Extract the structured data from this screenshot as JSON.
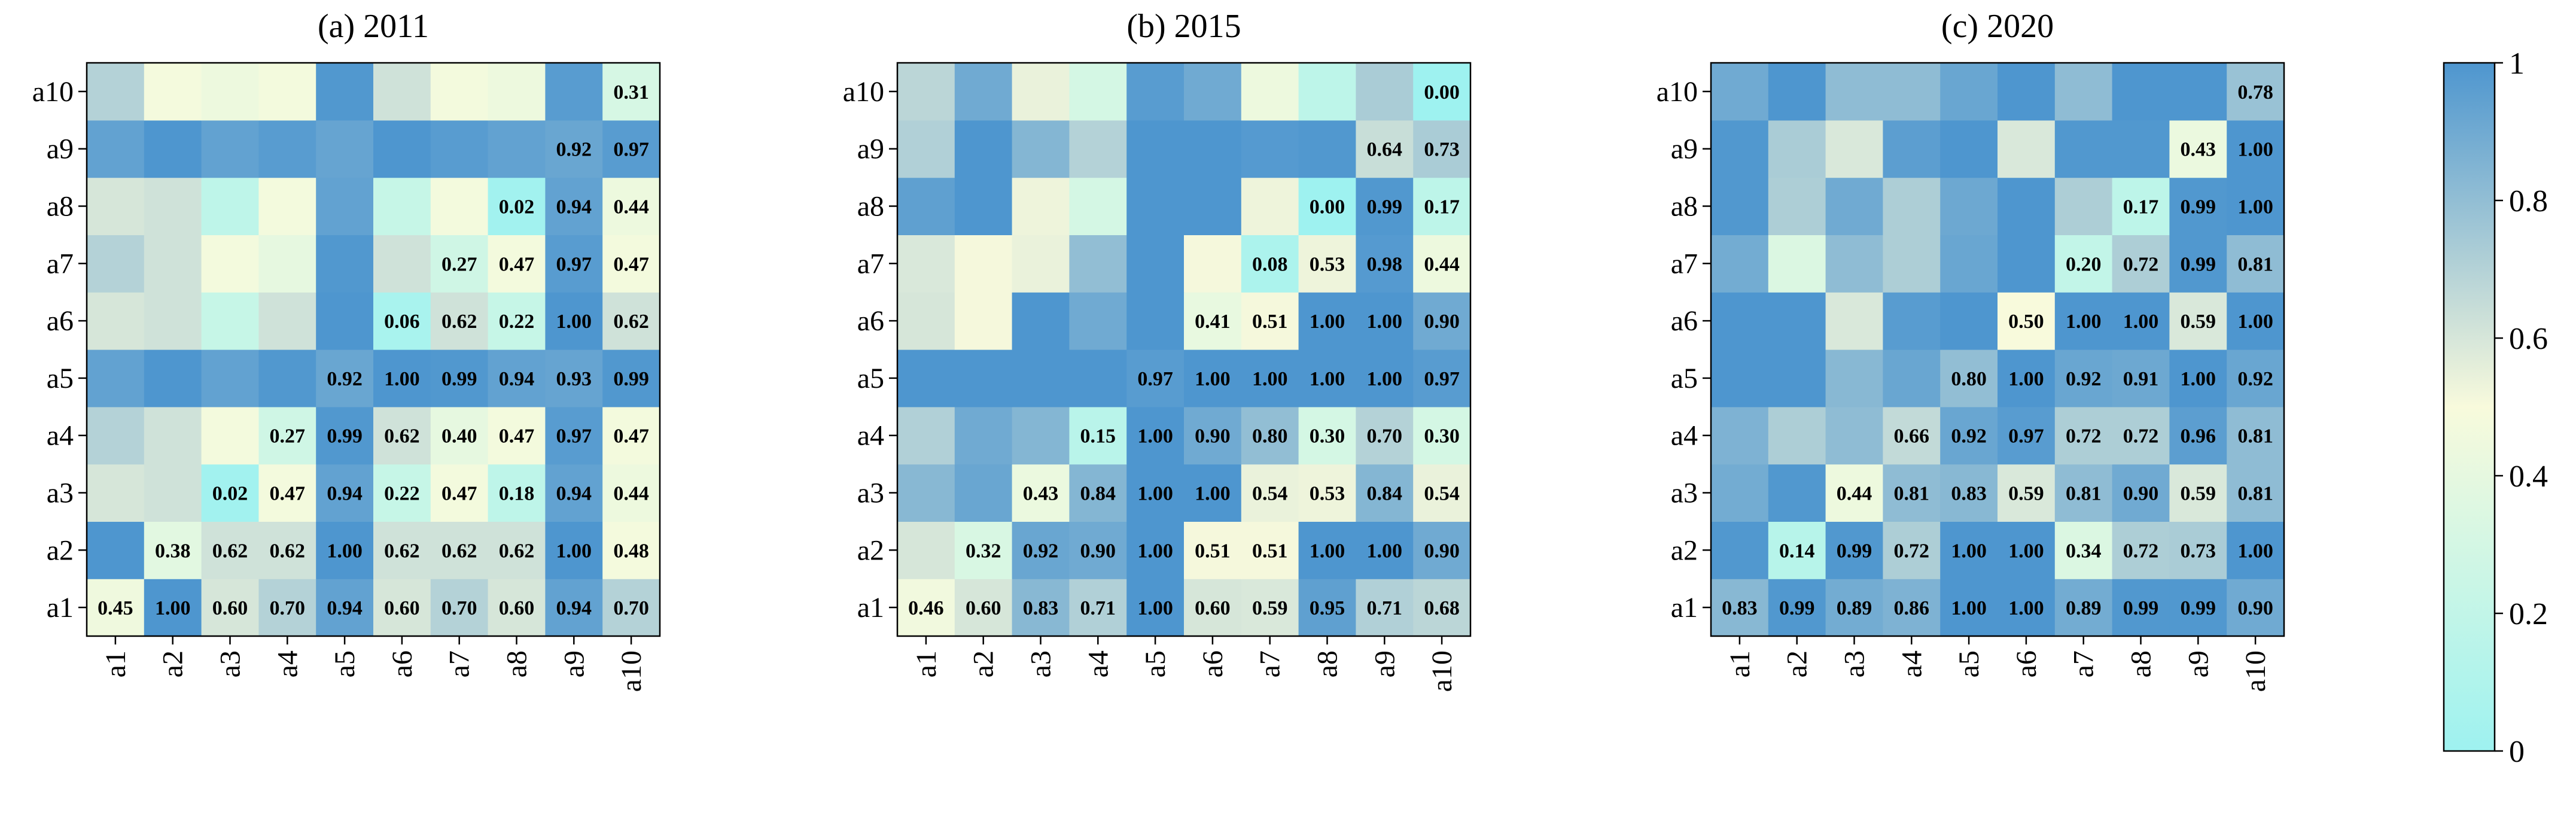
{
  "chart_data": [
    {
      "type": "heatmap",
      "title": "(a) 2011",
      "x_labels": [
        "a1",
        "a2",
        "a3",
        "a4",
        "a5",
        "a6",
        "a7",
        "a8",
        "a9",
        "a10"
      ],
      "y_labels": [
        "a1",
        "a2",
        "a3",
        "a4",
        "a5",
        "a6",
        "a7",
        "a8",
        "a9",
        "a10"
      ],
      "values": [
        [
          0.45,
          1.0,
          0.6,
          0.7,
          0.94,
          0.6,
          0.7,
          0.6,
          0.94,
          0.7
        ],
        [
          1.0,
          0.38,
          0.62,
          0.62,
          1.0,
          0.62,
          0.62,
          0.62,
          1.0,
          0.48
        ],
        [
          0.6,
          0.62,
          0.02,
          0.47,
          0.94,
          0.22,
          0.47,
          0.18,
          0.94,
          0.44
        ],
        [
          0.7,
          0.62,
          0.47,
          0.27,
          0.99,
          0.62,
          0.4,
          0.47,
          0.97,
          0.47
        ],
        [
          0.94,
          1.0,
          0.94,
          0.99,
          0.92,
          1.0,
          0.99,
          0.94,
          0.93,
          0.99
        ],
        [
          0.6,
          0.62,
          0.22,
          0.62,
          1.0,
          0.06,
          0.62,
          0.22,
          1.0,
          0.62
        ],
        [
          0.7,
          0.62,
          0.47,
          0.4,
          0.99,
          0.62,
          0.27,
          0.47,
          0.97,
          0.47
        ],
        [
          0.6,
          0.62,
          0.18,
          0.47,
          0.94,
          0.22,
          0.47,
          0.02,
          0.94,
          0.44
        ],
        [
          0.94,
          1.0,
          0.94,
          0.97,
          0.93,
          1.0,
          0.97,
          0.94,
          0.92,
          0.97
        ],
        [
          0.7,
          0.48,
          0.44,
          0.47,
          0.99,
          0.62,
          0.47,
          0.44,
          0.97,
          0.31
        ]
      ]
    },
    {
      "type": "heatmap",
      "title": "(b) 2015",
      "x_labels": [
        "a1",
        "a2",
        "a3",
        "a4",
        "a5",
        "a6",
        "a7",
        "a8",
        "a9",
        "a10"
      ],
      "y_labels": [
        "a1",
        "a2",
        "a3",
        "a4",
        "a5",
        "a6",
        "a7",
        "a8",
        "a9",
        "a10"
      ],
      "values": [
        [
          0.46,
          0.6,
          0.83,
          0.71,
          1.0,
          0.6,
          0.59,
          0.95,
          0.71,
          0.68
        ],
        [
          0.6,
          0.32,
          0.92,
          0.9,
          1.0,
          0.51,
          0.51,
          1.0,
          1.0,
          0.9
        ],
        [
          0.83,
          0.92,
          0.43,
          0.84,
          1.0,
          1.0,
          0.54,
          0.53,
          0.84,
          0.54
        ],
        [
          0.71,
          0.9,
          0.84,
          0.15,
          1.0,
          0.9,
          0.8,
          0.3,
          0.7,
          0.3
        ],
        [
          1.0,
          1.0,
          1.0,
          1.0,
          0.97,
          1.0,
          1.0,
          1.0,
          1.0,
          0.97
        ],
        [
          0.6,
          0.51,
          1.0,
          0.9,
          1.0,
          0.41,
          0.51,
          1.0,
          1.0,
          0.9
        ],
        [
          0.59,
          0.51,
          0.54,
          0.8,
          1.0,
          0.51,
          0.08,
          0.53,
          0.98,
          0.44
        ],
        [
          0.95,
          1.0,
          0.53,
          0.3,
          1.0,
          1.0,
          0.53,
          0.0,
          0.99,
          0.17
        ],
        [
          0.71,
          1.0,
          0.84,
          0.7,
          1.0,
          1.0,
          0.98,
          0.99,
          0.64,
          0.73
        ],
        [
          0.68,
          0.9,
          0.54,
          0.3,
          0.97,
          0.9,
          0.44,
          0.17,
          0.73,
          0.0
        ]
      ]
    },
    {
      "type": "heatmap",
      "title": "(c) 2020",
      "x_labels": [
        "a1",
        "a2",
        "a3",
        "a4",
        "a5",
        "a6",
        "a7",
        "a8",
        "a9",
        "a10"
      ],
      "y_labels": [
        "a1",
        "a2",
        "a3",
        "a4",
        "a5",
        "a6",
        "a7",
        "a8",
        "a9",
        "a10"
      ],
      "values": [
        [
          0.83,
          0.99,
          0.89,
          0.86,
          1.0,
          1.0,
          0.89,
          0.99,
          0.99,
          0.9
        ],
        [
          0.99,
          0.14,
          0.99,
          0.72,
          1.0,
          1.0,
          0.34,
          0.72,
          0.73,
          1.0
        ],
        [
          0.89,
          0.99,
          0.44,
          0.81,
          0.83,
          0.59,
          0.81,
          0.9,
          0.59,
          0.81
        ],
        [
          0.86,
          0.72,
          0.81,
          0.66,
          0.92,
          0.97,
          0.72,
          0.72,
          0.96,
          0.81
        ],
        [
          1.0,
          1.0,
          0.83,
          0.92,
          0.8,
          1.0,
          0.92,
          0.91,
          1.0,
          0.92
        ],
        [
          1.0,
          1.0,
          0.59,
          0.97,
          1.0,
          0.5,
          1.0,
          1.0,
          0.59,
          1.0
        ],
        [
          0.89,
          0.34,
          0.81,
          0.72,
          0.92,
          1.0,
          0.2,
          0.72,
          0.99,
          0.81
        ],
        [
          0.99,
          0.72,
          0.9,
          0.72,
          0.91,
          1.0,
          0.72,
          0.17,
          0.99,
          1.0
        ],
        [
          0.99,
          0.73,
          0.59,
          0.96,
          1.0,
          0.59,
          0.99,
          0.99,
          0.43,
          1.0
        ],
        [
          0.9,
          1.0,
          0.81,
          0.81,
          0.92,
          1.0,
          0.81,
          1.0,
          1.0,
          0.78
        ]
      ]
    }
  ],
  "colorbar": {
    "min": 0,
    "max": 1,
    "ticks": [
      "0",
      "0.2",
      "0.4",
      "0.6",
      "0.8",
      "1"
    ],
    "colors": [
      "#9ef2f0",
      "#f8fadc",
      "#4e96cf"
    ]
  }
}
